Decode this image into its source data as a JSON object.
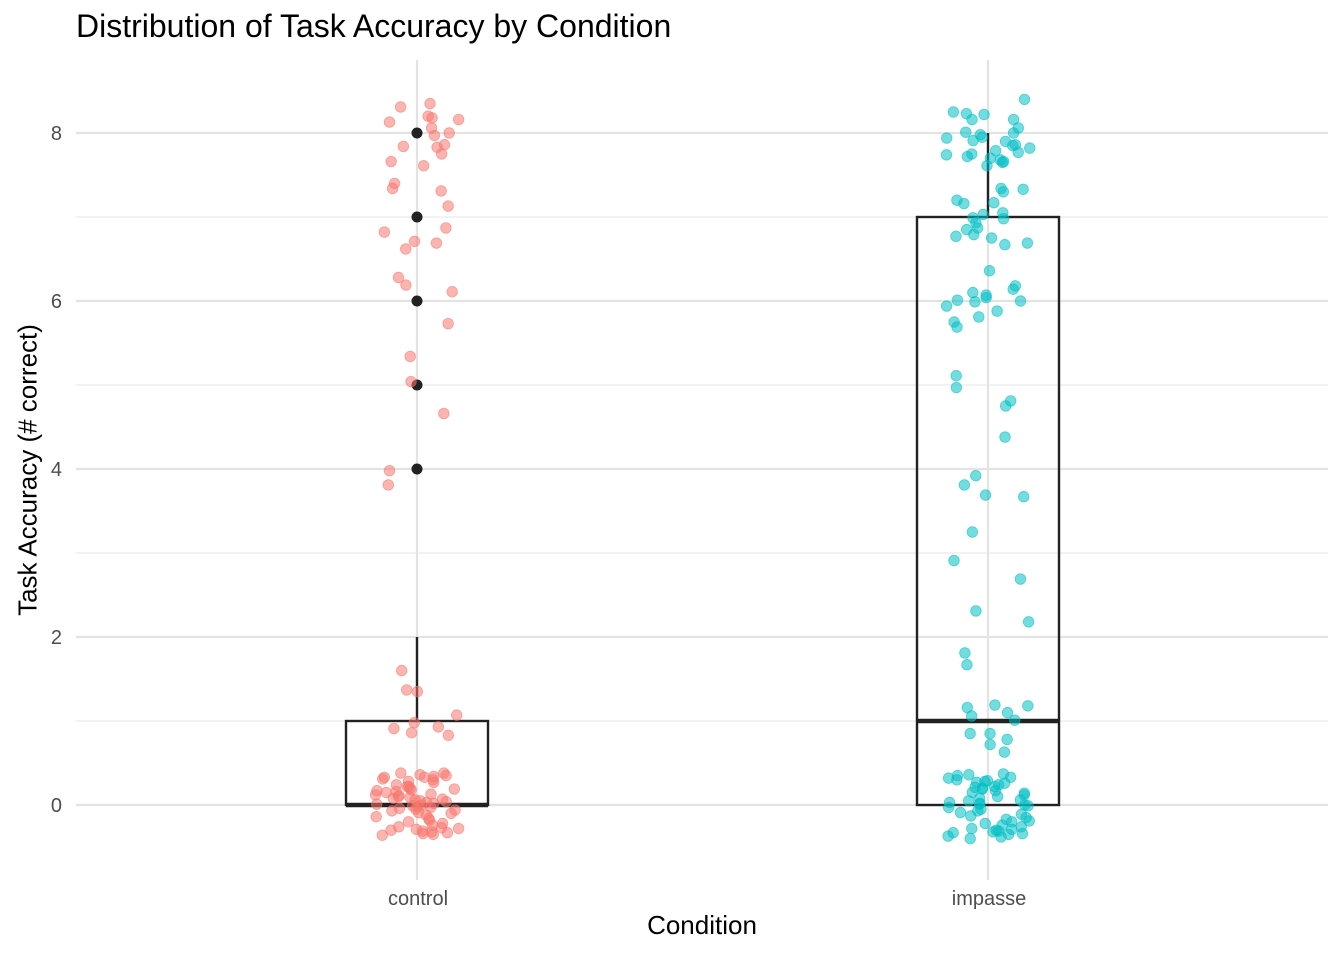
{
  "chart_data": {
    "type": "box",
    "title": "Distribution of Task Accuracy by Condition",
    "xlabel": "Condition",
    "ylabel": "Task Accuracy (# correct)",
    "categories": [
      "control",
      "impasse"
    ],
    "ylim": [
      -0.8,
      8.8
    ],
    "yticks": [
      0,
      2,
      4,
      6,
      8
    ],
    "grid": true,
    "colors": {
      "control": "#F8766D",
      "impasse": "#00BFC4",
      "box": "#222222",
      "outlier": "#222222"
    },
    "boxes": [
      {
        "category": "control",
        "lower_whisker": 0,
        "q1": 0,
        "median": 0,
        "q3": 1,
        "upper_whisker": 2,
        "outliers": [
          4,
          5,
          6,
          7,
          8
        ]
      },
      {
        "category": "impasse",
        "lower_whisker": 0,
        "q1": 0,
        "median": 1,
        "q3": 7,
        "upper_whisker": 8,
        "outliers": []
      }
    ],
    "jitter_points": {
      "control": [
        8.35,
        8.31,
        8.2,
        8.16,
        8.18,
        8.06,
        8.13,
        8.0,
        7.97,
        7.86,
        7.83,
        7.84,
        7.75,
        7.66,
        7.61,
        7.4,
        7.34,
        7.31,
        7.13,
        6.87,
        6.82,
        6.71,
        6.69,
        6.62,
        6.28,
        6.19,
        6.11,
        5.73,
        5.34,
        5.04,
        4.66,
        3.98,
        3.81,
        1.6,
        1.37,
        1.35,
        1.07,
        0.98,
        0.93,
        0.91,
        0.86,
        0.83,
        0.38,
        0.38,
        0.36,
        0.35,
        0.34,
        0.33,
        0.33,
        0.31,
        0.3,
        0.28,
        0.27,
        0.24,
        0.22,
        0.22,
        0.2,
        0.19,
        0.18,
        0.17,
        0.16,
        0.15,
        0.13,
        0.12,
        0.11,
        0.1,
        0.09,
        0.08,
        0.07,
        0.06,
        0.05,
        0.04,
        0.03,
        0.02,
        0.01,
        0.0,
        -0.01,
        -0.02,
        -0.03,
        -0.04,
        -0.05,
        -0.06,
        -0.07,
        -0.09,
        -0.1,
        -0.12,
        -0.14,
        -0.16,
        -0.18,
        -0.2,
        -0.22,
        -0.24,
        -0.26,
        -0.27,
        -0.28,
        -0.29,
        -0.3,
        -0.31,
        -0.32,
        -0.33,
        -0.34,
        -0.35,
        -0.36
      ],
      "impasse": [
        8.4,
        8.25,
        8.23,
        8.22,
        8.16,
        8.16,
        8.06,
        8.01,
        8.0,
        7.98,
        7.95,
        7.94,
        7.91,
        7.9,
        7.86,
        7.85,
        7.82,
        7.79,
        7.77,
        7.75,
        7.74,
        7.72,
        7.7,
        7.68,
        7.66,
        7.65,
        7.61,
        7.34,
        7.33,
        7.3,
        7.2,
        7.17,
        7.16,
        7.05,
        7.03,
        6.99,
        6.98,
        6.93,
        6.87,
        6.85,
        6.79,
        6.77,
        6.75,
        6.69,
        6.67,
        6.36,
        6.18,
        6.14,
        6.1,
        6.07,
        6.04,
        6.01,
        6.0,
        5.99,
        5.94,
        5.88,
        5.81,
        5.75,
        5.69,
        5.11,
        4.97,
        4.81,
        4.75,
        4.38,
        3.92,
        3.81,
        3.69,
        3.67,
        3.25,
        2.91,
        2.69,
        2.31,
        2.18,
        1.81,
        1.67,
        1.19,
        1.18,
        1.16,
        1.1,
        1.06,
        1.01,
        0.85,
        0.85,
        0.78,
        0.72,
        0.63,
        0.37,
        0.36,
        0.35,
        0.33,
        0.32,
        0.3,
        0.29,
        0.28,
        0.27,
        0.26,
        0.24,
        0.22,
        0.21,
        0.2,
        0.19,
        0.17,
        0.15,
        0.14,
        0.12,
        0.1,
        0.08,
        0.06,
        0.05,
        0.03,
        0.02,
        0.01,
        0.0,
        -0.01,
        -0.03,
        -0.05,
        -0.07,
        -0.09,
        -0.11,
        -0.13,
        -0.15,
        -0.17,
        -0.19,
        -0.2,
        -0.22,
        -0.24,
        -0.26,
        -0.28,
        -0.29,
        -0.3,
        -0.31,
        -0.32,
        -0.33,
        -0.34,
        -0.35,
        -0.37,
        -0.38,
        -0.4
      ]
    }
  }
}
